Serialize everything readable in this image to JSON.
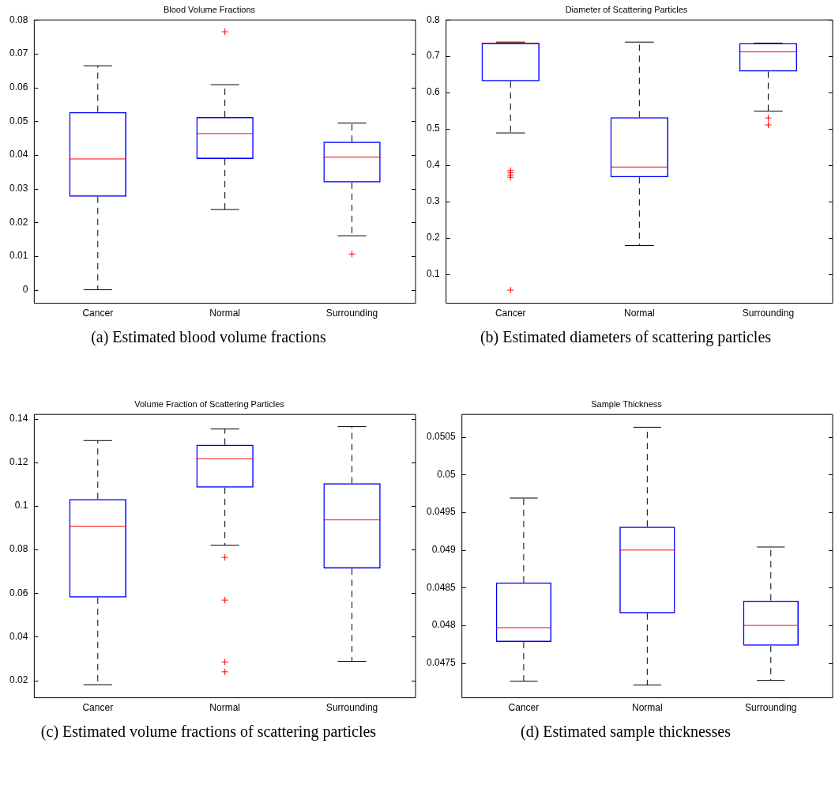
{
  "chart_data": [
    {
      "type": "box",
      "title": "Blood Volume Fractions",
      "categories": [
        "Cancer",
        "Normal",
        "Surrounding"
      ],
      "color": "#0000ff",
      "ylim": [
        -0.004,
        0.08
      ],
      "yticks": [
        0,
        0.01,
        0.02,
        0.03,
        0.04,
        0.05,
        0.06,
        0.07,
        0.08
      ],
      "grid": false,
      "legend": false,
      "annotations": [
        "(a) Estimated blood volume fractions"
      ],
      "boxes": [
        {
          "low": 0,
          "q1": 0.0276,
          "median": 0.0388,
          "q3": 0.0527,
          "high": 0.0664
        },
        {
          "low": 0.0238,
          "q1": 0.0388,
          "median": 0.0463,
          "q3": 0.0512,
          "high": 0.0608,
          "outliers": [
            0.0765
          ]
        },
        {
          "low": 0.016,
          "q1": 0.0318,
          "median": 0.0393,
          "q3": 0.0439,
          "high": 0.0494,
          "outliers": [
            0.0106
          ]
        }
      ]
    },
    {
      "type": "box",
      "title": "Diameter of Scattering Particles",
      "categories": [
        "Cancer",
        "Normal",
        "Surrounding"
      ],
      "color": "#0000ff",
      "ylim": [
        0.02,
        0.8
      ],
      "yticks": [
        0.1,
        0.2,
        0.3,
        0.4,
        0.5,
        0.6,
        0.7,
        0.8
      ],
      "grid": false,
      "legend": false,
      "annotations": [
        "(b) Estimated diameters of scattering particles"
      ],
      "boxes": [
        {
          "low": 0.489,
          "q1": 0.631,
          "median": 0.736,
          "q3": 0.736,
          "high": 0.739,
          "outliers": [
            0.385,
            0.379,
            0.373,
            0.367,
            0.056
          ]
        },
        {
          "low": 0.179,
          "q1": 0.367,
          "median": 0.395,
          "q3": 0.532,
          "high": 0.739
        },
        {
          "low": 0.549,
          "q1": 0.658,
          "median": 0.712,
          "q3": 0.736,
          "high": 0.736,
          "outliers": [
            0.53,
            0.511
          ]
        }
      ]
    },
    {
      "type": "box",
      "title": "Volume Fraction of Scattering Particles",
      "categories": [
        "Cancer",
        "Normal",
        "Surrounding"
      ],
      "color": "#0000ff",
      "ylim": [
        0.012,
        0.142
      ],
      "yticks": [
        0.02,
        0.04,
        0.06,
        0.08,
        0.1,
        0.12,
        0.14
      ],
      "grid": false,
      "legend": false,
      "annotations": [
        "(c) Estimated volume fractions of scattering particles"
      ],
      "boxes": [
        {
          "low": 0.018,
          "q1": 0.058,
          "median": 0.0907,
          "q3": 0.1032,
          "high": 0.13
        },
        {
          "low": 0.082,
          "q1": 0.1084,
          "median": 0.1217,
          "q3": 0.1281,
          "high": 0.1353,
          "outliers": [
            0.0764,
            0.0568,
            0.0284,
            0.0239
          ]
        },
        {
          "low": 0.0287,
          "q1": 0.0713,
          "median": 0.0936,
          "q3": 0.1104,
          "high": 0.1364
        }
      ]
    },
    {
      "type": "box",
      "title": "Sample Thickness",
      "categories": [
        "Cancer",
        "Normal",
        "Surrounding"
      ],
      "color": "#0000ff",
      "ylim": [
        0.04704,
        0.0508
      ],
      "yticks": [
        0.0475,
        0.048,
        0.0485,
        0.049,
        0.0495,
        0.05,
        0.0505
      ],
      "grid": false,
      "legend": false,
      "annotations": [
        "(d) Estimated sample thicknesses"
      ],
      "boxes": [
        {
          "low": 0.04726,
          "q1": 0.04778,
          "median": 0.04797,
          "q3": 0.04857,
          "high": 0.04969
        },
        {
          "low": 0.04721,
          "q1": 0.04816,
          "median": 0.049,
          "q3": 0.04931,
          "high": 0.05063
        },
        {
          "low": 0.04727,
          "q1": 0.04773,
          "median": 0.048,
          "q3": 0.04833,
          "high": 0.04904
        }
      ]
    }
  ]
}
